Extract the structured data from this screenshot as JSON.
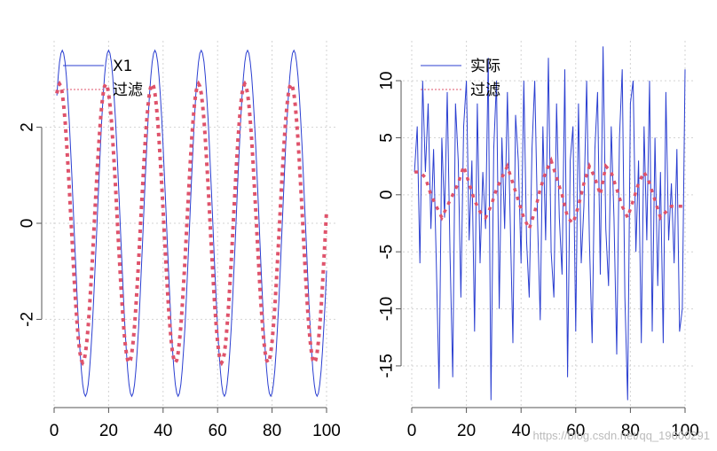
{
  "chart_data": [
    {
      "type": "line",
      "title": "",
      "xlabel": "",
      "ylabel": "",
      "xlim": [
        0,
        100
      ],
      "ylim": [
        -3.8,
        3.8
      ],
      "grid": true,
      "legend_position": "top-left",
      "x_ticks": [
        0,
        20,
        40,
        60,
        80,
        100
      ],
      "y_ticks": [
        -2,
        0,
        2
      ],
      "x_tick_labels": [
        "0",
        "20",
        "40",
        "60",
        "80",
        "100"
      ],
      "y_tick_labels": [
        "-2",
        "0",
        "2"
      ],
      "series": [
        {
          "name": "X1",
          "color": "#2b3fd1",
          "style": "solid",
          "amplitude": 3.6,
          "period": 17,
          "phase_peak_x": 3
        },
        {
          "name": "过滤",
          "color": "#df536b",
          "style": "dashed",
          "amplitude": 2.9,
          "period": 17,
          "phase_peak_x": 53
        }
      ]
    },
    {
      "type": "line",
      "title": "",
      "xlabel": "",
      "ylabel": "",
      "xlim": [
        0,
        100
      ],
      "ylim": [
        -18.5,
        13.5
      ],
      "grid": true,
      "legend_position": "top-left",
      "x_ticks": [
        0,
        20,
        40,
        60,
        80,
        100
      ],
      "y_ticks": [
        -15,
        -10,
        -5,
        0,
        5,
        10
      ],
      "x_tick_labels": [
        "0",
        "20",
        "40",
        "60",
        "80",
        "100"
      ],
      "y_tick_labels": [
        "-15",
        "-10",
        "-5",
        "0",
        "5",
        "10"
      ],
      "series": [
        {
          "name": "实际",
          "color": "#2b3fd1",
          "style": "solid",
          "x": [
            1,
            2,
            3,
            4,
            5,
            6,
            7,
            8,
            9,
            10,
            11,
            12,
            13,
            14,
            15,
            16,
            17,
            18,
            19,
            20,
            21,
            22,
            23,
            24,
            25,
            26,
            27,
            28,
            29,
            30,
            31,
            32,
            33,
            34,
            35,
            36,
            37,
            38,
            39,
            40,
            41,
            42,
            43,
            44,
            45,
            46,
            47,
            48,
            49,
            50,
            51,
            52,
            53,
            54,
            55,
            56,
            57,
            58,
            59,
            60,
            61,
            62,
            63,
            64,
            65,
            66,
            67,
            68,
            69,
            70,
            71,
            72,
            73,
            74,
            75,
            76,
            77,
            78,
            79,
            80,
            81,
            82,
            83,
            84,
            85,
            86,
            87,
            88,
            89,
            90,
            91,
            92,
            93,
            94,
            95,
            96,
            97,
            98,
            99,
            100
          ],
          "values": [
            2,
            6,
            -6,
            10,
            2,
            8,
            -3,
            4,
            -6,
            -17,
            5,
            -2,
            9,
            -5,
            -16,
            8,
            3,
            -9,
            6,
            10,
            -4,
            3,
            -12,
            8,
            -6,
            2,
            -3,
            12,
            -18,
            4,
            10,
            -10,
            5,
            -3,
            9,
            -2,
            -13,
            7,
            3,
            -6,
            10,
            -4,
            -9,
            4,
            10,
            -2,
            -11,
            6,
            -4,
            12,
            -5,
            -9,
            8,
            -2,
            -7,
            11,
            -16,
            3,
            6,
            -12,
            8,
            -6,
            -1,
            10,
            -4,
            -13,
            4,
            9,
            -7,
            13,
            -3,
            -8,
            6,
            -2,
            -14,
            5,
            11,
            -9,
            -18,
            8,
            10,
            -5,
            3,
            -13,
            6,
            -4,
            10,
            -12,
            5,
            -8,
            2,
            -13,
            9,
            -4,
            1,
            -6,
            4,
            -12,
            -10,
            11
          ]
        },
        {
          "name": "过滤",
          "color": "#df536b",
          "style": "dashed",
          "x": [
            1,
            3,
            5,
            7,
            9,
            11,
            13,
            15,
            17,
            19,
            21,
            23,
            25,
            27,
            29,
            31,
            33,
            35,
            37,
            39,
            41,
            43,
            45,
            47,
            49,
            51,
            53,
            55,
            57,
            59,
            61,
            63,
            65,
            67,
            69,
            71,
            73,
            75,
            77,
            79,
            81,
            83,
            85,
            87,
            89,
            91,
            93,
            95,
            97,
            99
          ],
          "values": [
            2,
            2,
            1.5,
            0,
            -1,
            -2,
            -1,
            0,
            1,
            2.5,
            1,
            -0.5,
            -1.5,
            -2,
            -1,
            0.5,
            1.5,
            2.5,
            1,
            -0.5,
            -2,
            -3,
            -1.5,
            0.5,
            2,
            3,
            1.5,
            0,
            -2,
            -2.5,
            -1,
            1,
            2.5,
            1.5,
            0,
            2.5,
            2,
            0.5,
            -1,
            -2,
            -0.5,
            1,
            2,
            1,
            -0.5,
            -2,
            -1.5,
            -1,
            -1,
            -1
          ]
        }
      ]
    }
  ],
  "watermark": "https://blog.csdn.net/qq_19600291"
}
